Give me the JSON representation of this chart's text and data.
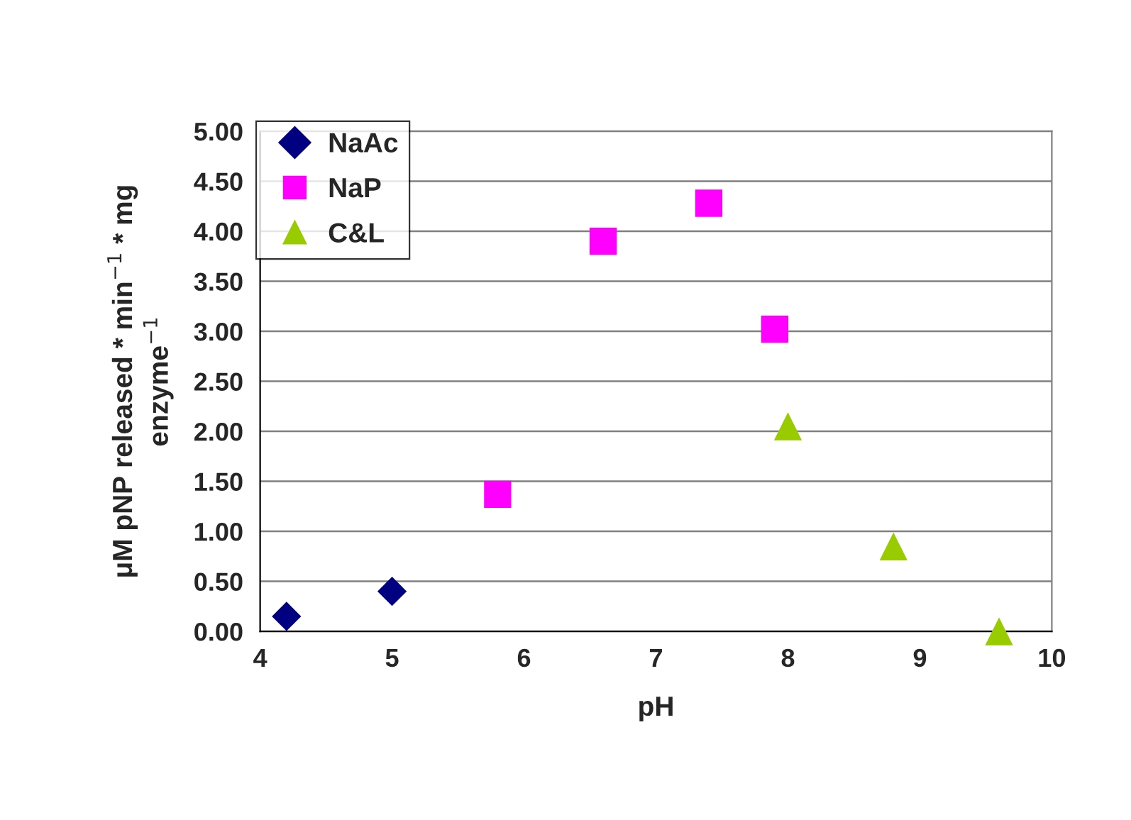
{
  "chart_data": {
    "type": "scatter",
    "xlabel": "pH",
    "ylabel": "μM pNP released * min$^{−1}$ * mg\nenzyme$^{−1}$",
    "xlim": [
      4,
      10
    ],
    "xticks": [
      4,
      5,
      6,
      7,
      8,
      9,
      10
    ],
    "ylim": [
      0,
      5
    ],
    "yticks": [
      {
        "value": 0,
        "label": "0.00"
      },
      {
        "value": 0.5,
        "label": "0.50"
      },
      {
        "value": 1,
        "label": "1.00"
      },
      {
        "value": 1.5,
        "label": "1.50"
      },
      {
        "value": 2,
        "label": "2.00"
      },
      {
        "value": 2.5,
        "label": "2.50"
      },
      {
        "value": 3,
        "label": "3.00"
      },
      {
        "value": 3.5,
        "label": "3.50"
      },
      {
        "value": 4,
        "label": "4.00"
      },
      {
        "value": 4.5,
        "label": "4.50"
      },
      {
        "value": 5,
        "label": "5.00"
      }
    ],
    "grid": "y",
    "legend": "top left",
    "series": [
      {
        "name": "NaAc",
        "color": "#000080",
        "marker": "diamond",
        "x": [
          4.2,
          5.0
        ],
        "values": [
          0.15,
          0.4
        ]
      },
      {
        "name": "NaP",
        "color": "#ff00ff",
        "marker": "square",
        "x": [
          5.8,
          6.6,
          7.4,
          7.9
        ],
        "values": [
          1.37,
          3.9,
          4.28,
          3.02
        ]
      },
      {
        "name": "C&L",
        "color": "#99cc00",
        "marker": "triangle",
        "x": [
          8.0,
          8.8,
          9.6
        ],
        "values": [
          2.05,
          0.85,
          0.0
        ]
      }
    ]
  }
}
